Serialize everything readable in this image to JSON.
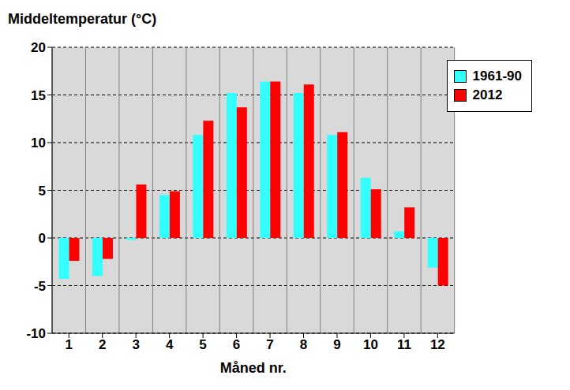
{
  "chart_data": {
    "type": "bar",
    "title": "Middeltemperatur (°C)",
    "x_label": "Måned nr.",
    "categories": [
      "1",
      "2",
      "3",
      "4",
      "5",
      "6",
      "7",
      "8",
      "9",
      "10",
      "11",
      "12"
    ],
    "series": [
      {
        "name": "1961-90",
        "color": "#33ffff",
        "values": [
          -4.3,
          -4.0,
          -0.2,
          4.5,
          10.8,
          15.2,
          16.4,
          15.2,
          10.8,
          6.3,
          0.7,
          -3.1
        ]
      },
      {
        "name": "2012",
        "color": "#ff0000",
        "values": [
          -2.4,
          -2.2,
          5.6,
          4.9,
          12.3,
          13.7,
          16.4,
          16.1,
          11.1,
          5.1,
          3.2,
          -5.0
        ]
      }
    ],
    "ylim": [
      -10,
      20
    ],
    "yticks": [
      -10,
      -5,
      0,
      5,
      10,
      15,
      20
    ],
    "grid": true,
    "legend": "upper right"
  }
}
